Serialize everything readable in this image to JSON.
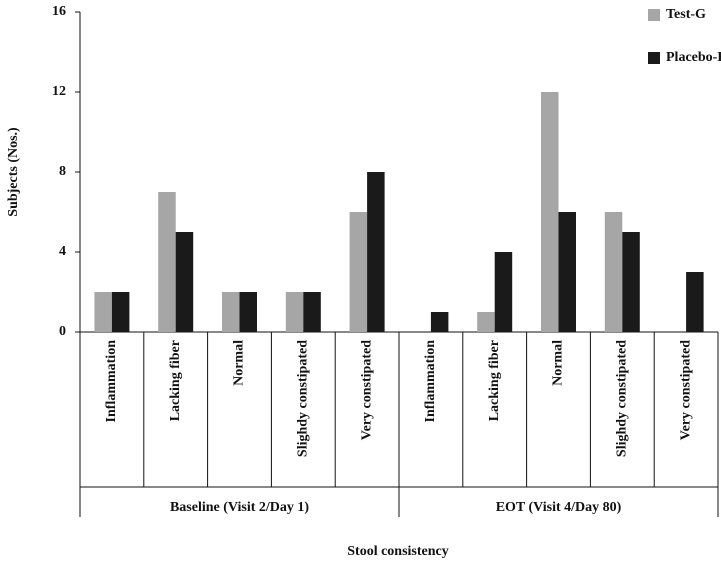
{
  "chart_data": {
    "type": "bar",
    "x_label": "Stool consistency",
    "y_label": "Subjects (Nos.)",
    "categories": [
      "Inflammation",
      "Lacking fiber",
      "Normal",
      "Slighdy constipated",
      "Very constipated",
      "Inflammation",
      "Lacking fiber",
      "Normal",
      "Slighdy constipated",
      "Very constipated"
    ],
    "category_groups": [
      "Baseline (Visit 2/Day 1)",
      "EOT (Visit 4/Day 80)"
    ],
    "series": [
      {
        "name": "Test-G",
        "color": "#a6a6a6",
        "values": [
          2,
          7,
          2,
          2,
          6,
          0,
          1,
          12,
          6,
          0
        ]
      },
      {
        "name": "Placebo-H",
        "color": "#1a1a1a",
        "values": [
          2,
          5,
          2,
          2,
          8,
          1,
          4,
          6,
          5,
          3
        ]
      }
    ],
    "ylim": [
      0,
      16
    ],
    "yticks": [
      0,
      4,
      8,
      12,
      16
    ],
    "legend": "top-right"
  }
}
